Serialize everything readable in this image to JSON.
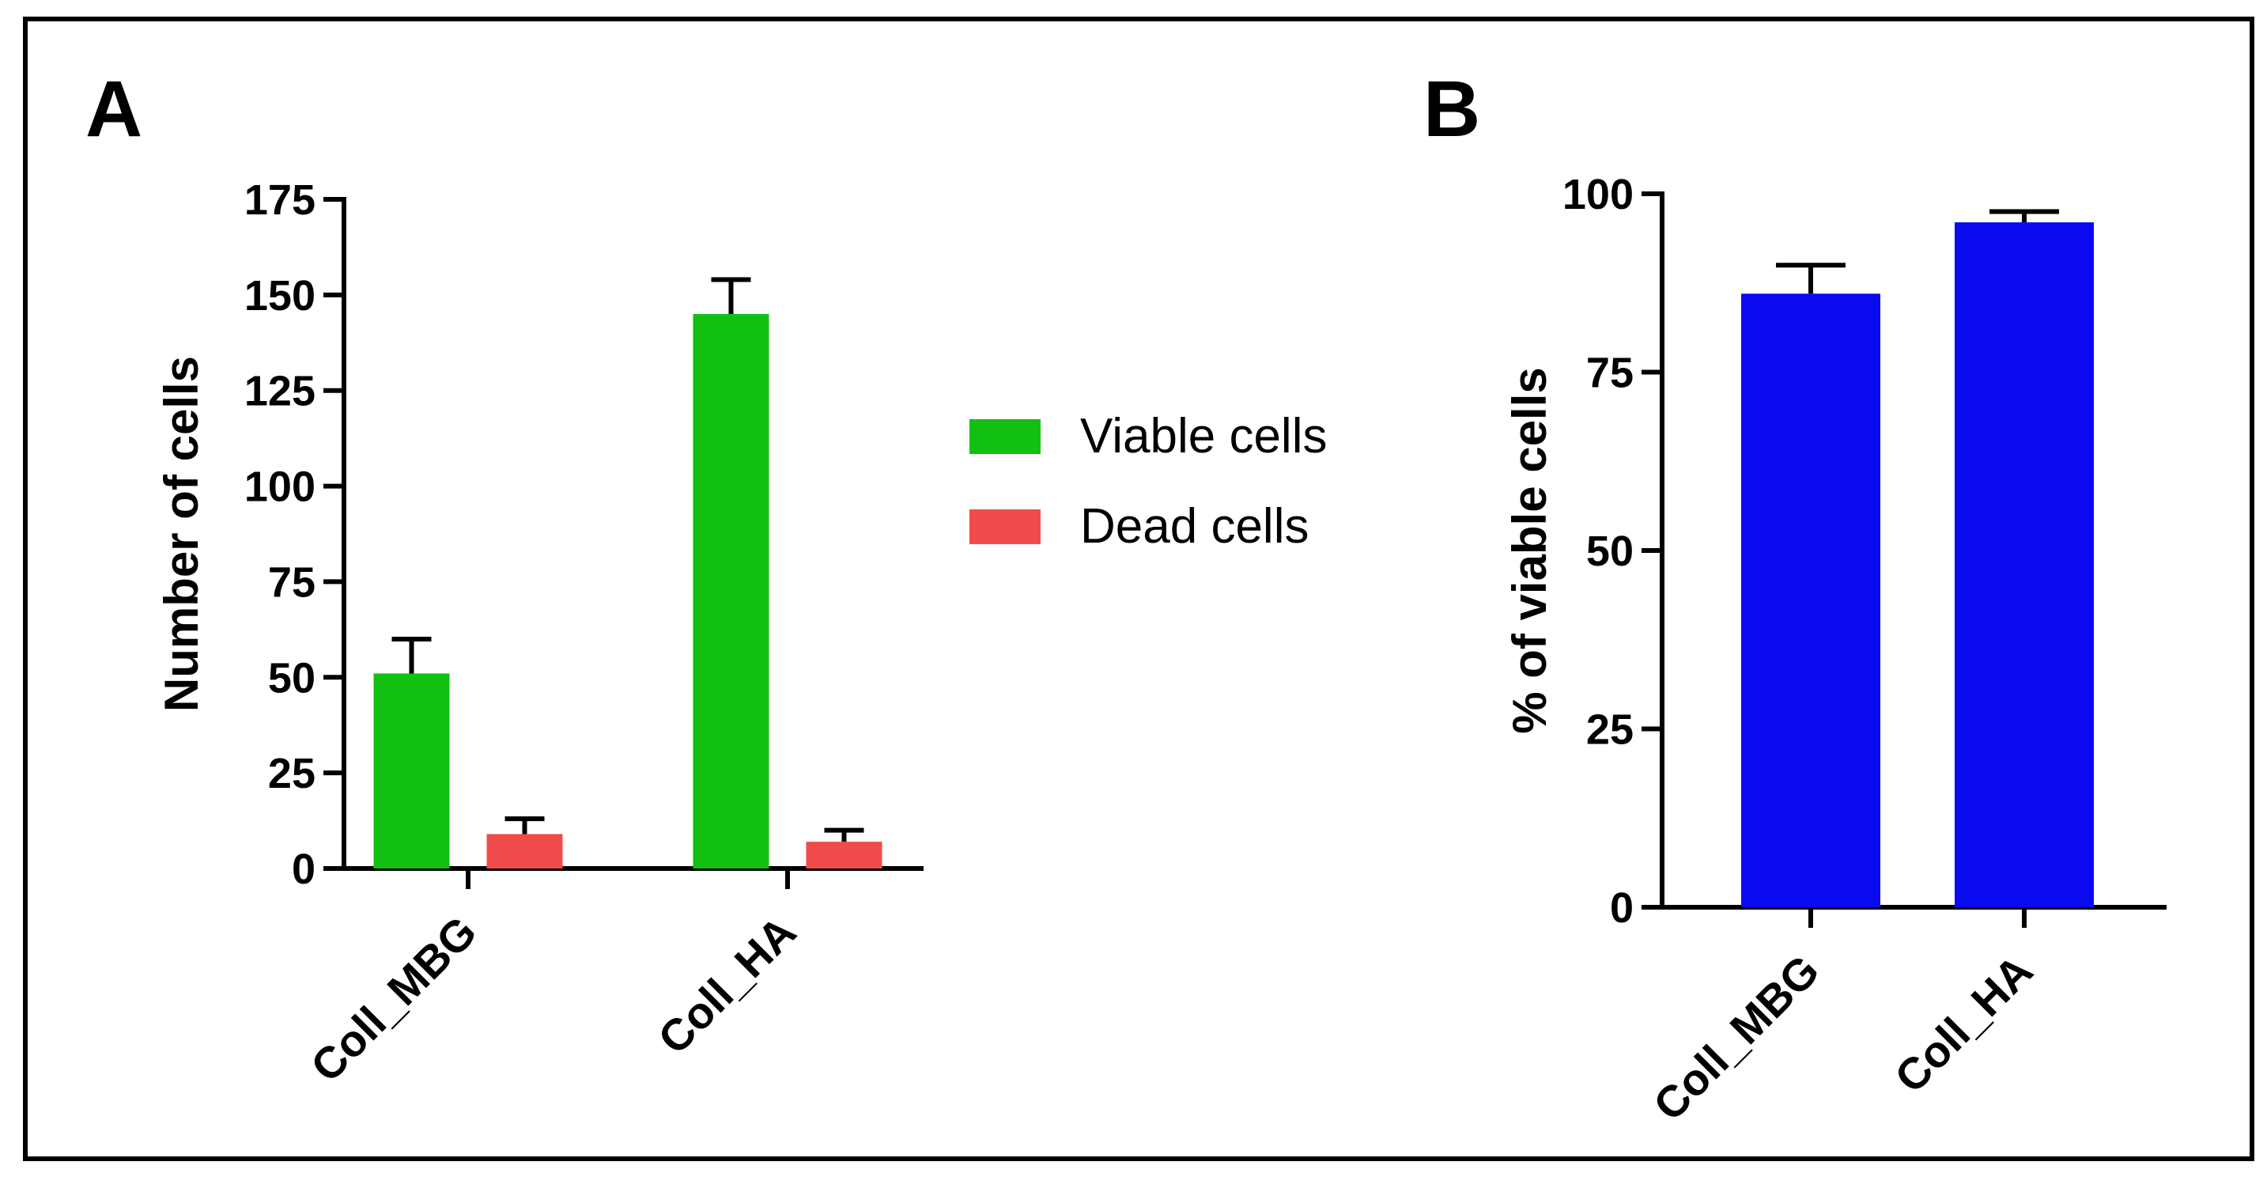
{
  "chart_data": [
    {
      "panel": "A",
      "type": "bar",
      "categories": [
        "Coll_MBG",
        "Coll_HA"
      ],
      "ylabel": "Number of cells",
      "ylim": [
        0,
        175
      ],
      "yticks": [
        0,
        25,
        50,
        75,
        100,
        125,
        150,
        175
      ],
      "series": [
        {
          "name": "Viable cells",
          "color": "#11c011",
          "values": [
            51,
            145
          ],
          "errors": [
            9,
            9
          ]
        },
        {
          "name": "Dead cells",
          "color": "#f04b4b",
          "values": [
            9,
            7
          ],
          "errors": [
            4,
            3
          ]
        }
      ],
      "legend": "right"
    },
    {
      "panel": "B",
      "type": "bar",
      "categories": [
        "Coll_MBG",
        "Coll_HA"
      ],
      "ylabel": "% of viable cells",
      "ylim": [
        0,
        100
      ],
      "yticks": [
        0,
        25,
        50,
        75,
        100
      ],
      "series": [
        {
          "name": "% of viable cells",
          "color": "#0a0af0",
          "values": [
            86,
            96
          ],
          "errors": [
            4,
            1.5
          ]
        }
      ]
    }
  ]
}
